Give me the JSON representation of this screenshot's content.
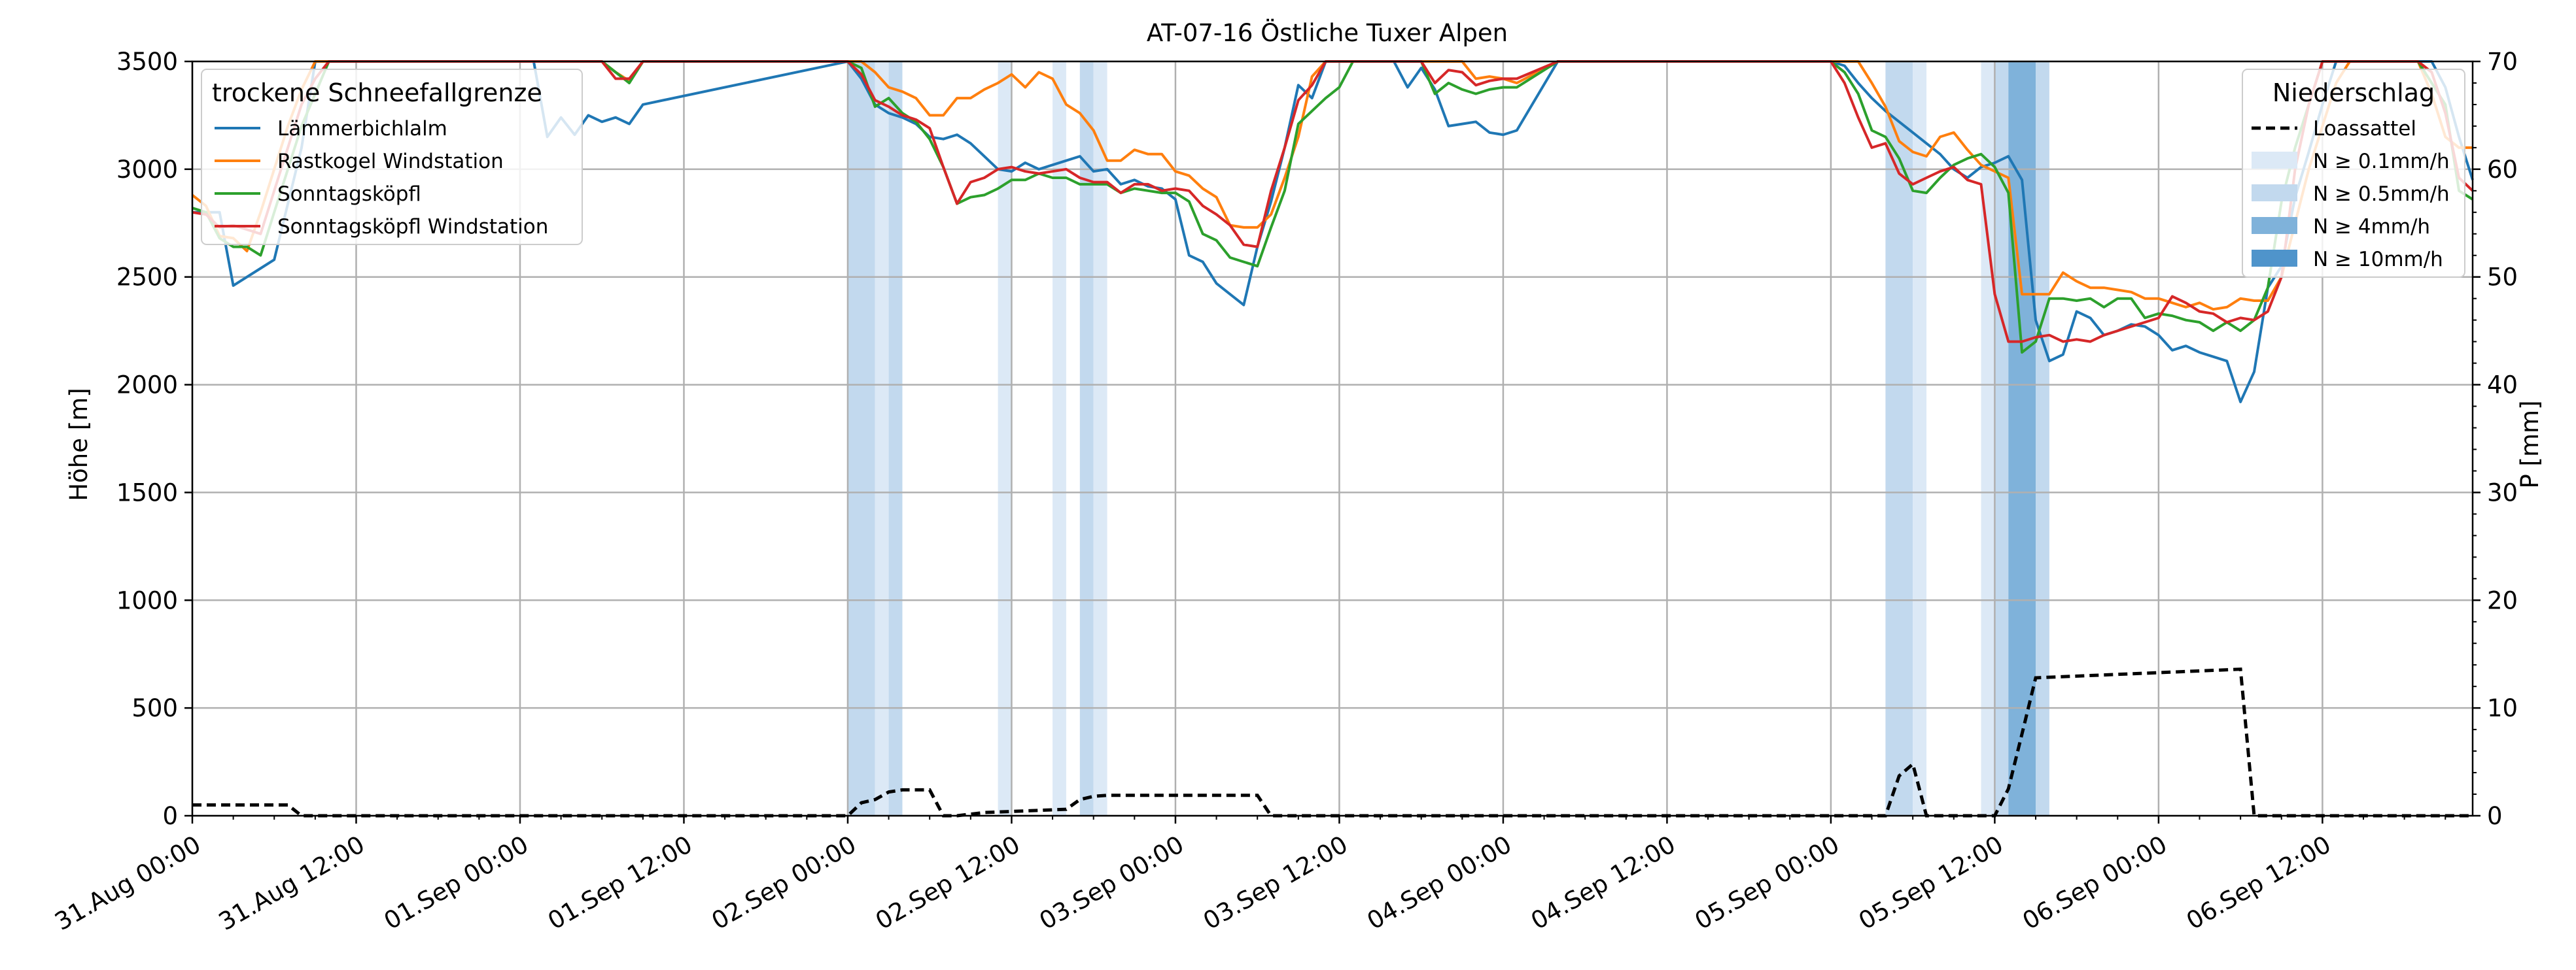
{
  "chart_data": {
    "type": "line",
    "title": "AT-07-16 Östliche Tuxer Alpen",
    "ylabel": "Höhe [m]",
    "y2label": "P [mm]",
    "ylim": [
      0,
      3500
    ],
    "y2lim": [
      0,
      70
    ],
    "xlim_hours": [
      0,
      167
    ],
    "x_ticks": [
      "31.Aug 00:00",
      "31.Aug 12:00",
      "01.Sep 00:00",
      "01.Sep 12:00",
      "02.Sep 00:00",
      "02.Sep 12:00",
      "03.Sep 00:00",
      "03.Sep 12:00",
      "04.Sep 00:00",
      "04.Sep 12:00",
      "05.Sep 00:00",
      "05.Sep 12:00",
      "06.Sep 00:00",
      "06.Sep 12:00"
    ],
    "y_ticks": [
      0,
      500,
      1000,
      1500,
      2000,
      2500,
      3000,
      3500
    ],
    "y2_ticks": [
      0,
      10,
      20,
      30,
      40,
      50,
      60,
      70
    ],
    "grid": true,
    "legend_snow": {
      "title": "trockene Schneefallgrenze",
      "placement": "top-left",
      "entries": [
        "Lämmerbichlalm",
        "Rastkogel Windstation",
        "Sonntagsköpfl",
        "Sonntagsköpfl Windstation"
      ]
    },
    "legend_precip": {
      "title": "Niederschlag",
      "placement": "top-right",
      "entries": [
        "Loassattel",
        "N ≥ 0.1mm/h",
        "N ≥ 0.5mm/h",
        "N ≥ 4mm/h",
        "N ≥ 10mm/h"
      ]
    },
    "band_colors": [
      "#dce9f6",
      "#c2d9ee",
      "#7fb2da",
      "#4f94cb"
    ],
    "precip_bands": [
      {
        "start": 48,
        "end": 50,
        "level": 1
      },
      {
        "start": 50,
        "end": 51,
        "level": 0
      },
      {
        "start": 51,
        "end": 52,
        "level": 1
      },
      {
        "start": 59,
        "end": 60,
        "level": 0
      },
      {
        "start": 63,
        "end": 64,
        "level": 0
      },
      {
        "start": 65,
        "end": 66,
        "level": 1
      },
      {
        "start": 66,
        "end": 67,
        "level": 0
      },
      {
        "start": 124,
        "end": 126,
        "level": 1
      },
      {
        "start": 126,
        "end": 127,
        "level": 0
      },
      {
        "start": 131,
        "end": 132,
        "level": 0
      },
      {
        "start": 132,
        "end": 133,
        "level": 1
      },
      {
        "start": 133,
        "end": 135,
        "level": 2
      },
      {
        "start": 135,
        "end": 136,
        "level": 1
      }
    ],
    "series": [
      {
        "name": "Lämmerbichlalm",
        "color": "#1f77b4",
        "x": [
          0,
          2,
          3,
          5,
          6,
          8,
          9,
          10,
          11,
          12,
          14,
          16,
          18,
          20,
          21,
          22,
          24,
          25,
          26,
          27,
          28,
          29,
          30,
          31,
          32,
          33,
          48,
          49,
          50,
          51,
          52,
          53,
          54,
          55,
          56,
          57,
          58,
          59,
          60,
          61,
          62,
          63,
          64,
          65,
          66,
          67,
          68,
          69,
          70,
          71,
          72,
          73,
          74,
          75,
          76,
          77,
          78,
          79,
          80,
          81,
          82,
          83,
          84,
          85,
          86,
          87,
          88,
          89,
          90,
          91,
          92,
          93,
          94,
          95,
          96,
          97,
          100,
          106,
          108,
          112,
          120,
          121,
          122,
          123,
          124,
          125,
          126,
          127,
          128,
          129,
          130,
          131,
          132,
          133,
          134,
          135,
          136,
          137,
          138,
          139,
          140,
          141,
          142,
          143,
          144,
          145,
          146,
          147,
          148,
          149,
          150,
          151,
          152,
          153,
          154,
          155,
          156,
          157,
          158,
          159,
          160,
          161,
          162,
          163,
          164,
          165,
          166,
          167
        ],
        "y": [
          2800,
          2800,
          2460,
          2540,
          2580,
          3100,
          3500,
          3500,
          3500,
          3500,
          3500,
          3500,
          3500,
          3500,
          3500,
          3500,
          3500,
          3500,
          3150,
          3240,
          3160,
          3250,
          3220,
          3240,
          3210,
          3300,
          3500,
          3420,
          3300,
          3260,
          3240,
          3210,
          3150,
          3140,
          3160,
          3120,
          3060,
          3000,
          2990,
          3030,
          3000,
          3020,
          3040,
          3060,
          2990,
          3000,
          2930,
          2950,
          2920,
          2910,
          2860,
          2600,
          2570,
          2470,
          2420,
          2370,
          2640,
          2850,
          3100,
          3390,
          3330,
          3500,
          3500,
          3500,
          3500,
          3500,
          3500,
          3380,
          3470,
          3370,
          3200,
          3210,
          3220,
          3170,
          3160,
          3180,
          3500,
          3500,
          3500,
          3500,
          3500,
          3480,
          3400,
          3330,
          3270,
          3220,
          3170,
          3120,
          3070,
          3000,
          2960,
          3010,
          3030,
          3060,
          2950,
          2300,
          2110,
          2140,
          2340,
          2310,
          2230,
          2250,
          2280,
          2270,
          2230,
          2160,
          2180,
          2150,
          2130,
          2110,
          1920,
          2060,
          2450,
          2550,
          2870,
          3080,
          3300,
          3500,
          3500,
          3500,
          3500,
          3500,
          3500,
          3500,
          3500,
          3380,
          3150,
          2950
        ]
      },
      {
        "name": "Rastkogel Windstation",
        "color": "#ff7f0e",
        "x": [
          0,
          1,
          2,
          3,
          4,
          5,
          6,
          7,
          8,
          9,
          10,
          12,
          14,
          16,
          18,
          20,
          21,
          22,
          24,
          26,
          28,
          30,
          31,
          32,
          33,
          48,
          49,
          50,
          51,
          52,
          53,
          54,
          55,
          56,
          57,
          58,
          59,
          60,
          61,
          62,
          63,
          64,
          65,
          66,
          67,
          68,
          69,
          70,
          71,
          72,
          73,
          74,
          75,
          76,
          77,
          78,
          79,
          80,
          81,
          82,
          83,
          84,
          85,
          86,
          87,
          88,
          89,
          90,
          91,
          92,
          93,
          94,
          95,
          96,
          97,
          100,
          106,
          108,
          112,
          120,
          121,
          122,
          123,
          124,
          125,
          126,
          127,
          128,
          129,
          130,
          131,
          132,
          133,
          134,
          135,
          136,
          137,
          138,
          139,
          140,
          141,
          142,
          143,
          144,
          145,
          146,
          147,
          148,
          149,
          150,
          151,
          152,
          153,
          154,
          155,
          156,
          157,
          158,
          159,
          160,
          161,
          162,
          163,
          164,
          165,
          166,
          167
        ],
        "y": [
          2880,
          2830,
          2690,
          2680,
          2620,
          2800,
          3000,
          3200,
          3370,
          3500,
          3500,
          3500,
          3500,
          3500,
          3500,
          3500,
          3500,
          3500,
          3500,
          3500,
          3500,
          3500,
          3450,
          3410,
          3500,
          3500,
          3500,
          3450,
          3380,
          3360,
          3330,
          3250,
          3250,
          3330,
          3330,
          3370,
          3400,
          3440,
          3380,
          3450,
          3420,
          3300,
          3260,
          3180,
          3040,
          3040,
          3090,
          3070,
          3070,
          2990,
          2970,
          2910,
          2870,
          2740,
          2730,
          2730,
          2790,
          2960,
          3150,
          3430,
          3500,
          3500,
          3500,
          3500,
          3500,
          3500,
          3500,
          3500,
          3500,
          3500,
          3500,
          3420,
          3430,
          3420,
          3400,
          3500,
          3500,
          3500,
          3500,
          3500,
          3500,
          3500,
          3400,
          3290,
          3130,
          3080,
          3060,
          3150,
          3170,
          3090,
          3020,
          2990,
          2960,
          2420,
          2420,
          2420,
          2520,
          2480,
          2450,
          2450,
          2440,
          2430,
          2400,
          2400,
          2380,
          2360,
          2380,
          2350,
          2360,
          2400,
          2390,
          2390,
          2500,
          2750,
          3000,
          3200,
          3400,
          3500,
          3500,
          3500,
          3500,
          3500,
          3500,
          3350,
          3150,
          3100,
          3100
        ]
      },
      {
        "name": "Sonntagsköpfl",
        "color": "#2ca02c",
        "x": [
          0,
          1,
          2,
          3,
          4,
          5,
          6,
          7,
          8,
          9,
          10,
          12,
          14,
          16,
          18,
          20,
          22,
          24,
          26,
          28,
          30,
          31,
          32,
          33,
          48,
          49,
          50,
          51,
          52,
          53,
          54,
          55,
          56,
          57,
          58,
          59,
          60,
          61,
          62,
          63,
          64,
          65,
          66,
          67,
          68,
          69,
          70,
          71,
          72,
          73,
          74,
          75,
          76,
          77,
          78,
          79,
          80,
          81,
          82,
          83,
          84,
          85,
          86,
          87,
          88,
          89,
          90,
          91,
          92,
          93,
          94,
          95,
          96,
          97,
          100,
          106,
          108,
          112,
          120,
          121,
          122,
          123,
          124,
          125,
          126,
          127,
          128,
          129,
          130,
          131,
          132,
          133,
          134,
          135,
          136,
          137,
          138,
          139,
          140,
          141,
          142,
          143,
          144,
          145,
          146,
          147,
          148,
          149,
          150,
          151,
          152,
          153,
          154,
          155,
          156,
          157,
          158,
          159,
          160,
          161,
          162,
          163,
          164,
          165,
          166,
          167
        ],
        "y": [
          2820,
          2800,
          2680,
          2640,
          2640,
          2600,
          2800,
          3000,
          3200,
          3350,
          3500,
          3500,
          3500,
          3500,
          3500,
          3500,
          3500,
          3500,
          3500,
          3500,
          3500,
          3450,
          3400,
          3500,
          3500,
          3470,
          3290,
          3330,
          3260,
          3220,
          3140,
          3010,
          2840,
          2870,
          2880,
          2910,
          2950,
          2950,
          2980,
          2960,
          2960,
          2930,
          2930,
          2930,
          2890,
          2910,
          2900,
          2890,
          2890,
          2850,
          2700,
          2670,
          2590,
          2570,
          2550,
          2730,
          2900,
          3210,
          3270,
          3330,
          3380,
          3500,
          3500,
          3500,
          3500,
          3500,
          3500,
          3350,
          3400,
          3370,
          3350,
          3370,
          3380,
          3380,
          3500,
          3500,
          3500,
          3500,
          3500,
          3450,
          3350,
          3180,
          3150,
          3050,
          2900,
          2890,
          2960,
          3020,
          3050,
          3070,
          3010,
          2890,
          2150,
          2200,
          2400,
          2400,
          2390,
          2400,
          2360,
          2400,
          2400,
          2310,
          2330,
          2320,
          2300,
          2290,
          2250,
          2290,
          2250,
          2300,
          2450,
          2850,
          3100,
          3300,
          3500,
          3500,
          3500,
          3500,
          3500,
          3500,
          3500,
          3500,
          3400,
          3300,
          2900,
          2860
        ]
      },
      {
        "name": "Sonntagsköpfl Windstation",
        "color": "#d62728",
        "x": [
          0,
          1,
          2,
          3,
          4,
          5,
          6,
          7,
          8,
          9,
          10,
          12,
          14,
          16,
          18,
          20,
          22,
          24,
          26,
          28,
          30,
          31,
          32,
          33,
          48,
          49,
          50,
          51,
          52,
          53,
          54,
          55,
          56,
          57,
          58,
          59,
          60,
          61,
          62,
          63,
          64,
          65,
          66,
          67,
          68,
          69,
          70,
          71,
          72,
          73,
          74,
          75,
          76,
          77,
          78,
          79,
          80,
          81,
          82,
          83,
          84,
          85,
          86,
          87,
          88,
          89,
          90,
          91,
          92,
          93,
          94,
          95,
          96,
          97,
          100,
          106,
          108,
          112,
          120,
          121,
          122,
          123,
          124,
          125,
          126,
          127,
          128,
          129,
          130,
          131,
          132,
          133,
          134,
          135,
          136,
          137,
          138,
          139,
          140,
          141,
          142,
          143,
          144,
          145,
          146,
          147,
          148,
          149,
          150,
          151,
          152,
          153,
          154,
          155,
          156,
          157,
          158,
          159,
          160,
          161,
          162,
          163,
          164,
          165,
          166,
          167
        ],
        "y": [
          2800,
          2790,
          2730,
          2740,
          2720,
          2700,
          2900,
          3100,
          3300,
          3420,
          3500,
          3500,
          3500,
          3500,
          3500,
          3500,
          3500,
          3500,
          3500,
          3500,
          3500,
          3420,
          3420,
          3500,
          3500,
          3440,
          3320,
          3290,
          3250,
          3230,
          3190,
          3010,
          2840,
          2940,
          2960,
          3000,
          3010,
          2990,
          2980,
          2990,
          3000,
          2960,
          2940,
          2940,
          2890,
          2930,
          2930,
          2900,
          2910,
          2900,
          2830,
          2790,
          2740,
          2650,
          2640,
          2900,
          3100,
          3320,
          3390,
          3500,
          3500,
          3500,
          3500,
          3500,
          3500,
          3500,
          3500,
          3400,
          3460,
          3450,
          3390,
          3410,
          3420,
          3420,
          3500,
          3500,
          3500,
          3500,
          3500,
          3400,
          3240,
          3100,
          3120,
          2980,
          2930,
          2960,
          2990,
          3010,
          2950,
          2930,
          2420,
          2200,
          2200,
          2220,
          2230,
          2200,
          2210,
          2200,
          2230,
          2250,
          2270,
          2290,
          2310,
          2410,
          2380,
          2340,
          2330,
          2290,
          2310,
          2300,
          2340,
          2500,
          3000,
          3300,
          3500,
          3500,
          3500,
          3500,
          3500,
          3500,
          3500,
          3500,
          3450,
          3260,
          2960,
          2900
        ]
      }
    ],
    "precip_series": {
      "name": "Loassattel",
      "color": "#000000",
      "x": [
        0,
        7,
        8,
        42,
        48,
        49,
        50,
        51,
        52,
        54,
        55,
        56,
        58,
        64,
        65,
        66,
        67,
        70,
        78,
        79,
        80,
        124,
        125,
        126,
        127,
        132,
        133,
        134,
        135,
        150,
        151,
        167
      ],
      "y": [
        1.0,
        1.0,
        0.0,
        0.0,
        0.0,
        1.2,
        1.5,
        2.2,
        2.4,
        2.4,
        0.0,
        0.0,
        0.3,
        0.6,
        1.5,
        1.8,
        1.9,
        1.9,
        1.9,
        0.0,
        0.0,
        0.0,
        3.7,
        4.8,
        0.0,
        0.0,
        2.5,
        7.6,
        12.8,
        13.6,
        0.0,
        0.0
      ]
    }
  }
}
